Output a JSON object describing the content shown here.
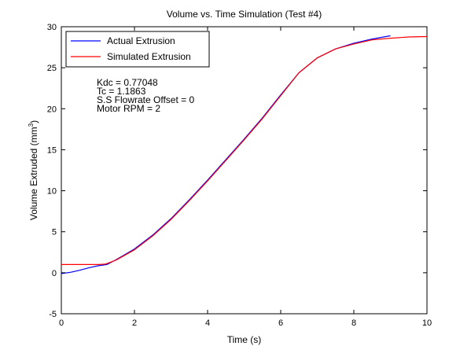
{
  "chart_data": {
    "type": "line",
    "title": "Volume vs. Time Simulation (Test #4)",
    "xlabel": "Time (s)",
    "ylabel": "Volume Extruded (mm",
    "ylabel_sup": "3",
    "ylabel_end": ")",
    "xlim": [
      0,
      10
    ],
    "ylim": [
      -5,
      30
    ],
    "xticks": [
      0,
      2,
      4,
      6,
      8,
      10
    ],
    "yticks": [
      -5,
      0,
      5,
      10,
      15,
      20,
      25,
      30
    ],
    "xtick_labels": [
      "0",
      "2",
      "4",
      "6",
      "8",
      "10"
    ],
    "ytick_labels": [
      "-5",
      "0",
      "5",
      "10",
      "15",
      "20",
      "25",
      "30"
    ],
    "grid": false,
    "legend_position": "top-left",
    "series": [
      {
        "name": "Actual Extrusion",
        "color": "#0000ff",
        "x": [
          0,
          0.25,
          0.5,
          0.75,
          1.0,
          1.25,
          1.5,
          2.0,
          2.5,
          3.0,
          3.5,
          4.0,
          4.5,
          5.0,
          5.5,
          6.0,
          6.5,
          7.0,
          7.5,
          8.0,
          8.5,
          9.0
        ],
        "y": [
          -0.1,
          0.05,
          0.3,
          0.6,
          0.85,
          1.0,
          1.6,
          2.9,
          4.6,
          6.6,
          8.9,
          11.3,
          13.8,
          16.3,
          18.9,
          21.7,
          24.4,
          26.2,
          27.3,
          28.0,
          28.5,
          28.9
        ]
      },
      {
        "name": "Simulated Extrusion",
        "color": "#ff0000",
        "x": [
          0,
          0.5,
          1.0,
          1.2,
          1.5,
          2.0,
          2.5,
          3.0,
          3.5,
          4.0,
          4.5,
          5.0,
          5.5,
          6.0,
          6.5,
          7.0,
          7.5,
          8.0,
          8.5,
          9.0,
          9.5,
          10.0
        ],
        "y": [
          1.0,
          1.0,
          1.0,
          1.05,
          1.55,
          2.8,
          4.5,
          6.5,
          8.8,
          11.2,
          13.7,
          16.2,
          18.8,
          21.6,
          24.4,
          26.2,
          27.3,
          27.9,
          28.4,
          28.6,
          28.75,
          28.8
        ]
      }
    ],
    "annotations": [
      "Kdc = 0.77048",
      "Tc = 1.1863",
      "S.S Flowrate Offset = 0",
      "Motor RPM = 2"
    ]
  }
}
